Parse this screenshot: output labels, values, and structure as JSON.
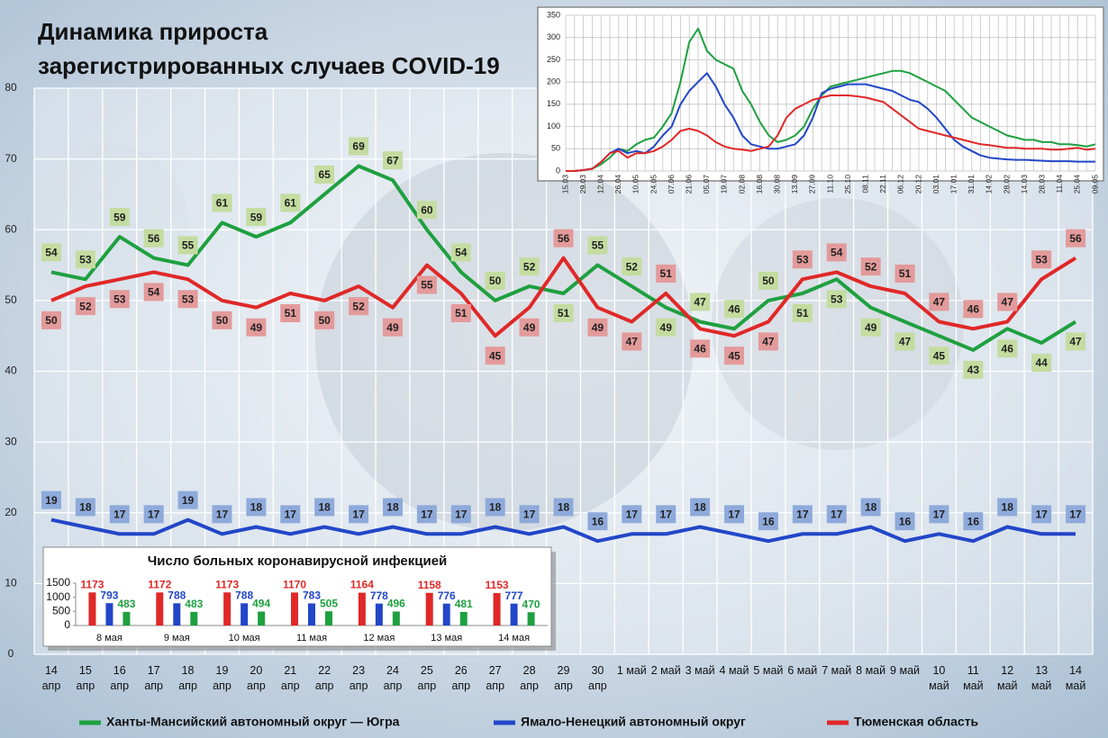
{
  "chart_data": [
    {
      "type": "line",
      "title": [
        "Динамика прироста",
        "зарегистрированных случаев COVID-19"
      ],
      "categories": [
        "14 апр",
        "15 апр",
        "16 апр",
        "17 апр",
        "18 апр",
        "19 апр",
        "20 апр",
        "21 апр",
        "22 апр",
        "23 апр",
        "24 апр",
        "25 апр",
        "26 апр",
        "27 апр",
        "28 апр",
        "29 апр",
        "30 апр",
        "1 май",
        "2 май",
        "3 май",
        "4 май",
        "5 май",
        "6 май",
        "7 май",
        "8 май",
        "9 май",
        "10 май",
        "11 май",
        "12 май",
        "13 май",
        "14 май"
      ],
      "series": [
        {
          "name": "Ханты-Мансийский автономный округ — Югра",
          "color": "#1ea040",
          "label_color": "#c4dca0",
          "values": [
            54,
            53,
            59,
            56,
            55,
            61,
            59,
            61,
            65,
            69,
            67,
            60,
            54,
            50,
            52,
            51,
            55,
            52,
            49,
            47,
            46,
            50,
            51,
            53,
            49,
            47,
            45,
            43,
            46,
            44,
            47
          ]
        },
        {
          "name": "Ямало-Ненецкий автономный округ",
          "color": "#2246c8",
          "label_color": "#8eaadb",
          "values": [
            19,
            18,
            17,
            17,
            19,
            17,
            18,
            17,
            18,
            17,
            18,
            17,
            17,
            18,
            17,
            18,
            16,
            17,
            17,
            18,
            17,
            16,
            17,
            17,
            18,
            16,
            17,
            16,
            18,
            17,
            17
          ]
        },
        {
          "name": "Тюменская область",
          "color": "#e02828",
          "label_color": "#e39a9a",
          "values": [
            50,
            52,
            53,
            54,
            53,
            50,
            49,
            51,
            50,
            52,
            49,
            55,
            51,
            45,
            49,
            56,
            49,
            47,
            51,
            46,
            45,
            47,
            53,
            54,
            52,
            51,
            47,
            46,
            47,
            53,
            56
          ]
        }
      ],
      "ylim": [
        0,
        80
      ],
      "yticks": [
        0,
        10,
        20,
        30,
        40,
        50,
        60,
        70,
        80
      ],
      "grid": true,
      "data_labels": true,
      "legend": "bottom"
    },
    {
      "type": "line",
      "categories": [
        "15.03",
        null,
        "29.03",
        null,
        "12.04",
        null,
        "26.04",
        null,
        "10.05",
        null,
        "24.05",
        null,
        "07.06",
        null,
        "21.06",
        null,
        "05.07",
        null,
        "19.07",
        null,
        "02.08",
        null,
        "16.08",
        null,
        "30.08",
        null,
        "13.09",
        null,
        "27.09",
        null,
        "11.10",
        null,
        "25.10",
        null,
        "08.11",
        null,
        "22.11",
        null,
        "06.12",
        null,
        "20.12",
        null,
        "03.01",
        null,
        "17.01",
        null,
        "31.01",
        null,
        "14.02",
        null,
        "28.02",
        null,
        "14.03",
        null,
        "28.03",
        null,
        "11.04",
        null,
        "25.04",
        null,
        "09.05"
      ],
      "series": [
        {
          "color": "#1ea040",
          "values": [
            0,
            0,
            2,
            5,
            15,
            30,
            50,
            45,
            60,
            70,
            75,
            100,
            130,
            200,
            290,
            320,
            270,
            250,
            240,
            230,
            180,
            150,
            110,
            80,
            65,
            70,
            80,
            100,
            140,
            170,
            190,
            195,
            200,
            205,
            210,
            215,
            220,
            225,
            225,
            220,
            210,
            200,
            190,
            180,
            160,
            140,
            120,
            110,
            100,
            90,
            80,
            75,
            70,
            70,
            65,
            65,
            60,
            60,
            58,
            55,
            60
          ]
        },
        {
          "color": "#2246c8",
          "values": [
            0,
            0,
            2,
            5,
            20,
            40,
            50,
            40,
            45,
            40,
            55,
            80,
            100,
            150,
            180,
            200,
            220,
            190,
            150,
            120,
            80,
            60,
            55,
            50,
            50,
            55,
            60,
            80,
            120,
            175,
            185,
            190,
            195,
            195,
            195,
            190,
            185,
            180,
            170,
            160,
            155,
            140,
            120,
            95,
            70,
            55,
            45,
            35,
            30,
            28,
            26,
            25,
            25,
            24,
            23,
            22,
            22,
            22,
            21,
            21,
            21
          ]
        },
        {
          "color": "#e02828",
          "values": [
            0,
            0,
            2,
            5,
            20,
            40,
            45,
            30,
            40,
            40,
            45,
            55,
            70,
            90,
            95,
            90,
            80,
            65,
            55,
            50,
            48,
            45,
            50,
            55,
            80,
            120,
            140,
            150,
            160,
            165,
            170,
            170,
            170,
            168,
            165,
            160,
            155,
            140,
            125,
            110,
            95,
            90,
            85,
            80,
            75,
            70,
            65,
            60,
            58,
            55,
            52,
            52,
            50,
            50,
            50,
            48,
            48,
            50,
            52,
            48,
            50
          ]
        }
      ],
      "ylim": [
        0,
        350
      ],
      "yticks": [
        0,
        50,
        100,
        150,
        200,
        250,
        300,
        350
      ],
      "grid": true
    },
    {
      "type": "bar",
      "title": "Число больных коронавирусной инфекцией",
      "categories": [
        "8 мая",
        "9 мая",
        "10 мая",
        "11 мая",
        "12 мая",
        "13 мая",
        "14 мая"
      ],
      "series": [
        {
          "color": "#e02828",
          "values": [
            1173,
            1172,
            1173,
            1170,
            1164,
            1158,
            1153
          ]
        },
        {
          "color": "#2246c8",
          "values": [
            793,
            788,
            788,
            783,
            778,
            776,
            777
          ]
        },
        {
          "color": "#1ea040",
          "values": [
            483,
            483,
            494,
            505,
            496,
            481,
            470
          ]
        }
      ],
      "ylim": [
        0,
        1500
      ],
      "yticks": [
        0,
        500,
        1000,
        1500
      ],
      "data_labels": true
    }
  ]
}
